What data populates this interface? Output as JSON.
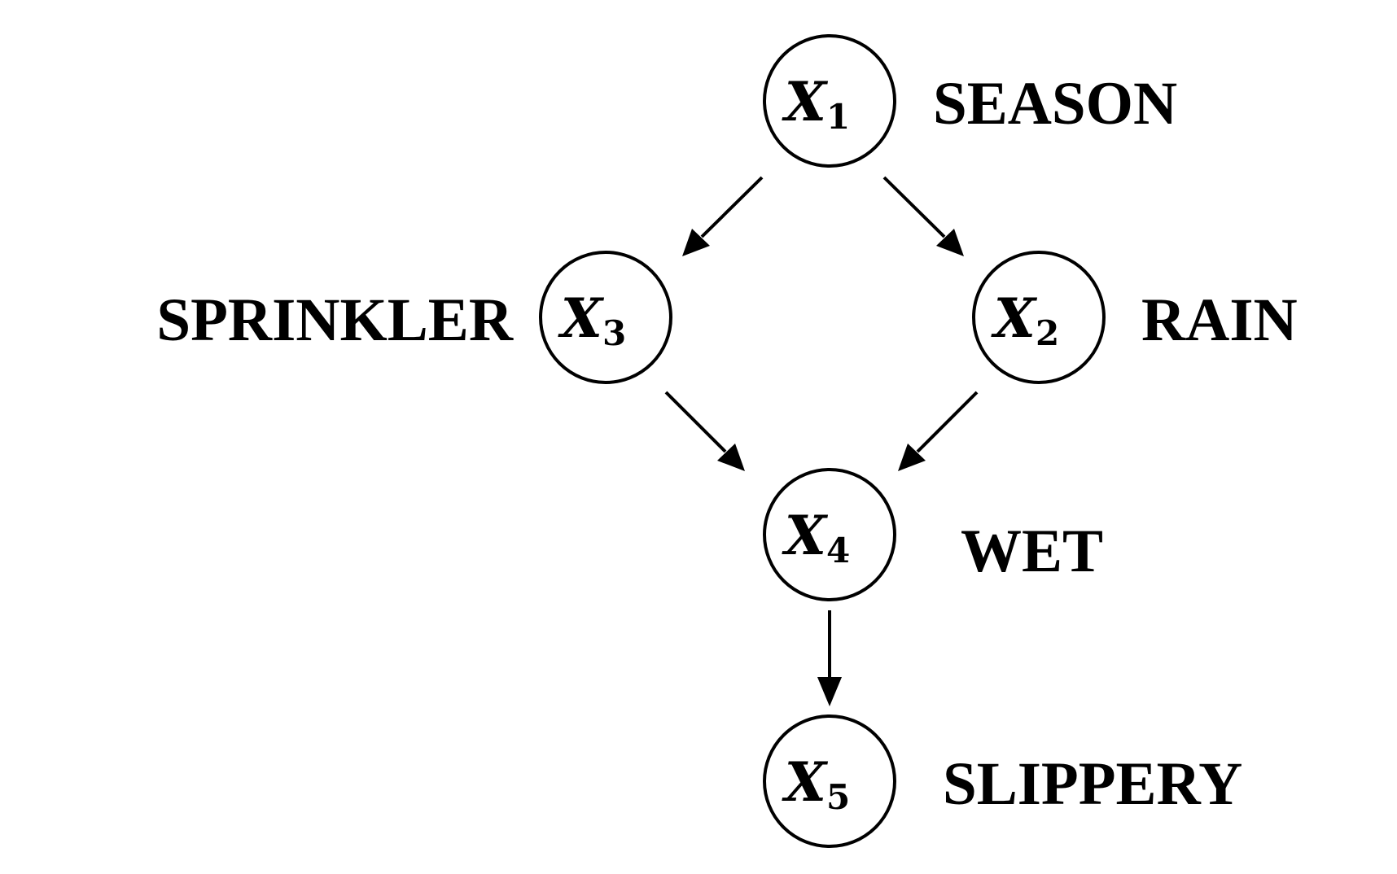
{
  "nodes": [
    {
      "id": "x1",
      "symbol": "X",
      "index": "1",
      "label": "SEASON"
    },
    {
      "id": "x2",
      "symbol": "X",
      "index": "2",
      "label": "RAIN"
    },
    {
      "id": "x3",
      "symbol": "X",
      "index": "3",
      "label": "SPRINKLER"
    },
    {
      "id": "x4",
      "symbol": "X",
      "index": "4",
      "label": "WET"
    },
    {
      "id": "x5",
      "symbol": "X",
      "index": "5",
      "label": "SLIPPERY"
    }
  ],
  "edges": [
    {
      "from": "x1",
      "to": "x3"
    },
    {
      "from": "x1",
      "to": "x2"
    },
    {
      "from": "x3",
      "to": "x4"
    },
    {
      "from": "x2",
      "to": "x4"
    },
    {
      "from": "x4",
      "to": "x5"
    }
  ],
  "colors": {
    "stroke": "#000000",
    "background": "#ffffff"
  }
}
